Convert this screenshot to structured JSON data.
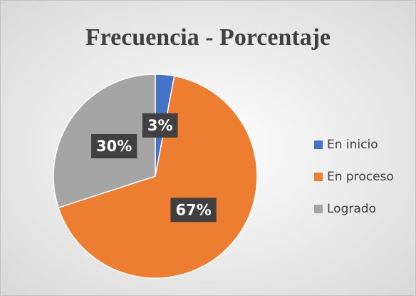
{
  "chart_data": {
    "type": "pie",
    "title": "Frecuencia - Porcentaje",
    "categories": [
      "En inicio",
      "En proceso",
      "Logrado"
    ],
    "values": [
      3,
      67,
      30
    ],
    "value_labels": [
      "3%",
      "67%",
      "30%"
    ],
    "colors": [
      "#4472c4",
      "#ed7d31",
      "#a5a5a5"
    ],
    "legend": "right"
  }
}
